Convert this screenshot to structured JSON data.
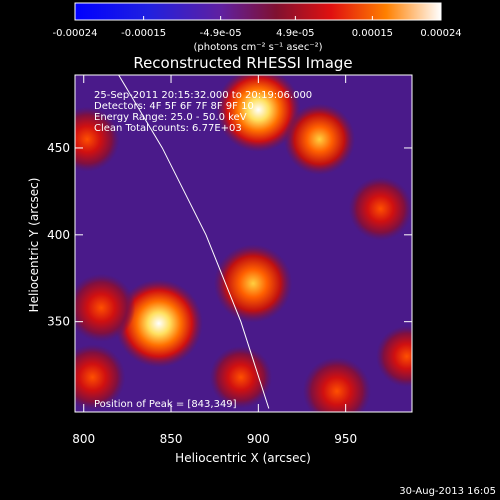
{
  "chart_data": {
    "type": "heatmap",
    "title": "Reconstructed RHESSI Image",
    "xlabel": "Heliocentric X (arcsec)",
    "ylabel": "Heliocentric Y (arcsec)",
    "xlim": [
      795,
      988
    ],
    "ylim": [
      298,
      492
    ],
    "xticks": [
      800,
      850,
      900,
      950
    ],
    "yticks": [
      350,
      400,
      450
    ],
    "colorbar": {
      "range": [
        -0.00024,
        0.00024
      ],
      "ticks": [
        "-0.00024",
        "-0.00015",
        "-4.9e-05",
        "4.9e-05",
        "0.00015",
        "0.00024"
      ],
      "tick_values": [
        -0.00024,
        -0.00015,
        -4.9e-05,
        4.9e-05,
        0.00015,
        0.00024
      ],
      "unit_label": "(photons cm⁻² s⁻¹ asec⁻²)"
    },
    "annotations": [
      "25-Sep-2011 20:15:32.000 to 20:19:06.000",
      "Detectors: 4F 5F 6F 7F 8F 9F 10",
      "Energy Range: 25.0 - 50.0 keV",
      "Clean     Total counts: 6.77E+03"
    ],
    "peak_label": "Position of Peak = [843,349]",
    "sources": [
      {
        "x": 843,
        "y": 349,
        "value": 1.0
      },
      {
        "x": 900,
        "y": 472,
        "value": 0.92
      },
      {
        "x": 897,
        "y": 372,
        "value": 0.78
      },
      {
        "x": 810,
        "y": 358,
        "value": 0.55
      },
      {
        "x": 802,
        "y": 455,
        "value": 0.48
      },
      {
        "x": 805,
        "y": 318,
        "value": 0.5
      },
      {
        "x": 935,
        "y": 455,
        "value": 0.62
      },
      {
        "x": 945,
        "y": 310,
        "value": 0.55
      },
      {
        "x": 970,
        "y": 415,
        "value": 0.45
      },
      {
        "x": 890,
        "y": 318,
        "value": 0.42
      },
      {
        "x": 985,
        "y": 330,
        "value": 0.4
      }
    ],
    "limb": [
      [
        820,
        492
      ],
      [
        845,
        450
      ],
      [
        870,
        400
      ],
      [
        890,
        350
      ],
      [
        906,
        300
      ]
    ]
  },
  "timestamp": "30-Aug-2013 16:05"
}
